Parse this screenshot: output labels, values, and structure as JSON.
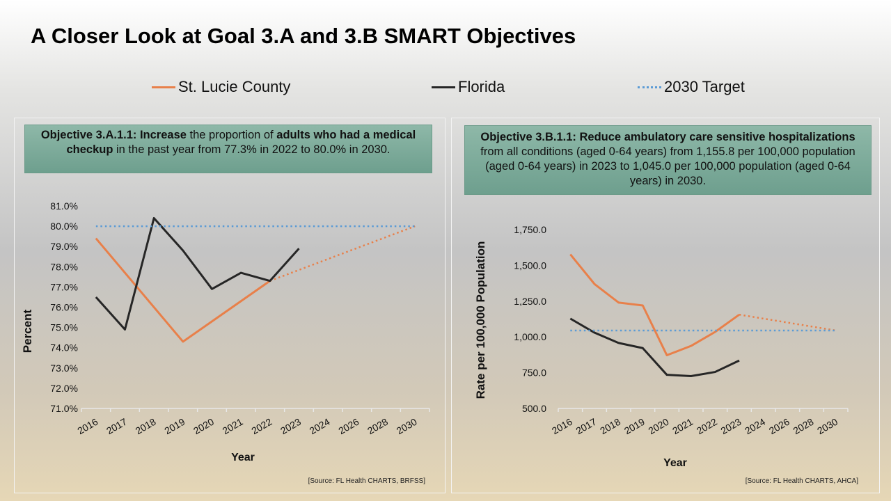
{
  "title": "A Closer Look at Goal 3.A and 3.B SMART Objectives",
  "legend": [
    {
      "label": "St. Lucie County",
      "color": "#e8804a",
      "style": "solid"
    },
    {
      "label": "Florida",
      "color": "#262626",
      "style": "solid"
    },
    {
      "label": "2030 Target",
      "color": "#5b9bd5",
      "style": "dotted"
    }
  ],
  "objectives": [
    {
      "segments": [
        {
          "t": "Objective 3.A.1.1: Increase",
          "b": true
        },
        {
          "t": " the proportion of ",
          "b": false
        },
        {
          "t": "adults who had a medical checkup",
          "b": true
        },
        {
          "t": " in the past year from 77.3% in 2022 to 80.0% in 2030.",
          "b": false
        }
      ],
      "source": "[Source: FL Health CHARTS, BRFSS]"
    },
    {
      "segments": [
        {
          "t": "Objective 3.B.1.1: Reduce ambulatory care sensitive hospitalizations",
          "b": true
        },
        {
          "t": " from all conditions (aged 0-64 years) from 1,155.8 per 100,000 population (aged 0-64 years) in 2023 to 1,045.0 per 100,000 population (aged 0-64 years) in 2030.",
          "b": false
        }
      ],
      "source": "[Source: FL Health CHARTS, AHCA]"
    }
  ],
  "chart_data": [
    {
      "type": "line",
      "xlabel": "Year",
      "ylabel": "Percent",
      "categories": [
        "2016",
        "2017",
        "2018",
        "2019",
        "2020",
        "2021",
        "2022",
        "2023",
        "2024",
        "2026",
        "2028",
        "2030"
      ],
      "ylim": [
        71,
        81
      ],
      "yticks": [
        "71.0%",
        "72.0%",
        "73.0%",
        "74.0%",
        "75.0%",
        "76.0%",
        "77.0%",
        "78.0%",
        "79.0%",
        "80.0%",
        "81.0%"
      ],
      "grid": false,
      "series": [
        {
          "name": "St. Lucie County",
          "color": "#e8804a",
          "style": "solid",
          "values": [
            79.4,
            null,
            null,
            74.3,
            null,
            null,
            77.3,
            null,
            null,
            null,
            null,
            null
          ]
        },
        {
          "name": "St. Lucie County",
          "color": "#e8804a",
          "style": "dotted",
          "values": [
            null,
            null,
            null,
            null,
            null,
            null,
            77.3,
            null,
            null,
            null,
            null,
            80.0
          ]
        },
        {
          "name": "Florida",
          "color": "#262626",
          "style": "solid",
          "values": [
            76.5,
            74.9,
            80.4,
            78.8,
            76.9,
            77.7,
            77.3,
            78.9,
            null,
            null,
            null,
            null
          ]
        },
        {
          "name": "2030 Target",
          "color": "#5b9bd5",
          "style": "dotted",
          "values": [
            80.0,
            80.0,
            80.0,
            80.0,
            80.0,
            80.0,
            80.0,
            80.0,
            80.0,
            80.0,
            80.0,
            80.0
          ]
        }
      ]
    },
    {
      "type": "line",
      "xlabel": "Year",
      "ylabel": "Rate per 100,000 Population",
      "categories": [
        "2016",
        "2017",
        "2018",
        "2019",
        "2020",
        "2021",
        "2022",
        "2023",
        "2024",
        "2026",
        "2028",
        "2030"
      ],
      "ylim": [
        500,
        1750
      ],
      "yticks": [
        "500.0",
        "750.0",
        "1,000.0",
        "1,250.0",
        "1,500.0",
        "1,750.0"
      ],
      "grid": false,
      "series": [
        {
          "name": "St. Lucie County",
          "color": "#e8804a",
          "style": "solid",
          "values": [
            1577,
            1370,
            1240,
            1220,
            872,
            937,
            1035,
            1155.8,
            null,
            null,
            null,
            null
          ]
        },
        {
          "name": "St. Lucie County",
          "color": "#e8804a",
          "style": "dotted",
          "values": [
            null,
            null,
            null,
            null,
            null,
            null,
            null,
            1155.8,
            null,
            null,
            null,
            1045.0
          ]
        },
        {
          "name": "Florida",
          "color": "#262626",
          "style": "solid",
          "values": [
            1128,
            1030,
            958,
            922,
            735,
            726,
            755,
            835,
            null,
            null,
            null,
            null
          ]
        },
        {
          "name": "2030 Target",
          "color": "#5b9bd5",
          "style": "dotted",
          "values": [
            1045,
            1045,
            1045,
            1045,
            1045,
            1045,
            1045,
            1045,
            1045,
            1045,
            1045,
            1045
          ]
        }
      ]
    }
  ]
}
